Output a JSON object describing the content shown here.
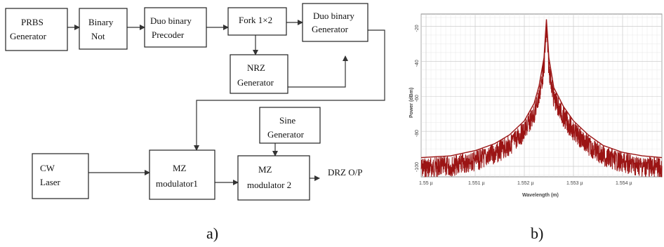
{
  "blocks": [
    {
      "id": "prbs",
      "lines": [
        "PRBS",
        "Generator"
      ]
    },
    {
      "id": "not",
      "lines": [
        "Binary",
        "Not"
      ]
    },
    {
      "id": "precoder",
      "lines": [
        "Duo binary",
        "Precoder"
      ]
    },
    {
      "id": "fork",
      "lines": [
        "Fork 1×2"
      ]
    },
    {
      "id": "duogen",
      "lines": [
        "Duo binary",
        "Generator"
      ]
    },
    {
      "id": "nrz",
      "lines": [
        "NRZ",
        "Generator"
      ]
    },
    {
      "id": "sine",
      "lines": [
        "Sine",
        "Generator"
      ]
    },
    {
      "id": "cw",
      "lines": [
        "CW",
        "Laser"
      ]
    },
    {
      "id": "mz1",
      "lines": [
        "MZ",
        "modulator1"
      ]
    },
    {
      "id": "mz2",
      "lines": [
        "MZ",
        "modulator 2"
      ]
    }
  ],
  "output_label": "DRZ O/P",
  "captions": {
    "a": "a)",
    "b": "b)"
  },
  "colors": {
    "spectrum": "#9b1414",
    "line": "#333333"
  },
  "chart_data": {
    "type": "line",
    "xlabel": "Wavelength (m)",
    "ylabel": "Power (dBm)",
    "x_ticks": [
      "1.55 µ",
      "1.551 µ",
      "1.552 µ",
      "1.553 µ",
      "1.554 µ"
    ],
    "y_ticks": [
      "-20",
      "-40",
      "-60",
      "-80",
      "-100"
    ],
    "xlim": [
      1.5499,
      1.5548
    ],
    "ylim": [
      -106,
      -13
    ],
    "grid": true,
    "series": [
      {
        "x": [
          1.5499,
          1.5505,
          1.551,
          1.5514,
          1.5517,
          1.552,
          1.5522,
          1.5523,
          1.5524,
          1.55245,
          1.5525,
          1.5526,
          1.5528,
          1.553,
          1.5533,
          1.5536,
          1.554,
          1.5544,
          1.5548
        ],
        "y": [
          -95,
          -94,
          -91,
          -87,
          -82,
          -74,
          -64,
          -54,
          -38,
          -16,
          -38,
          -55,
          -66,
          -74,
          -82,
          -88,
          -92,
          -94,
          -95
        ]
      }
    ]
  }
}
